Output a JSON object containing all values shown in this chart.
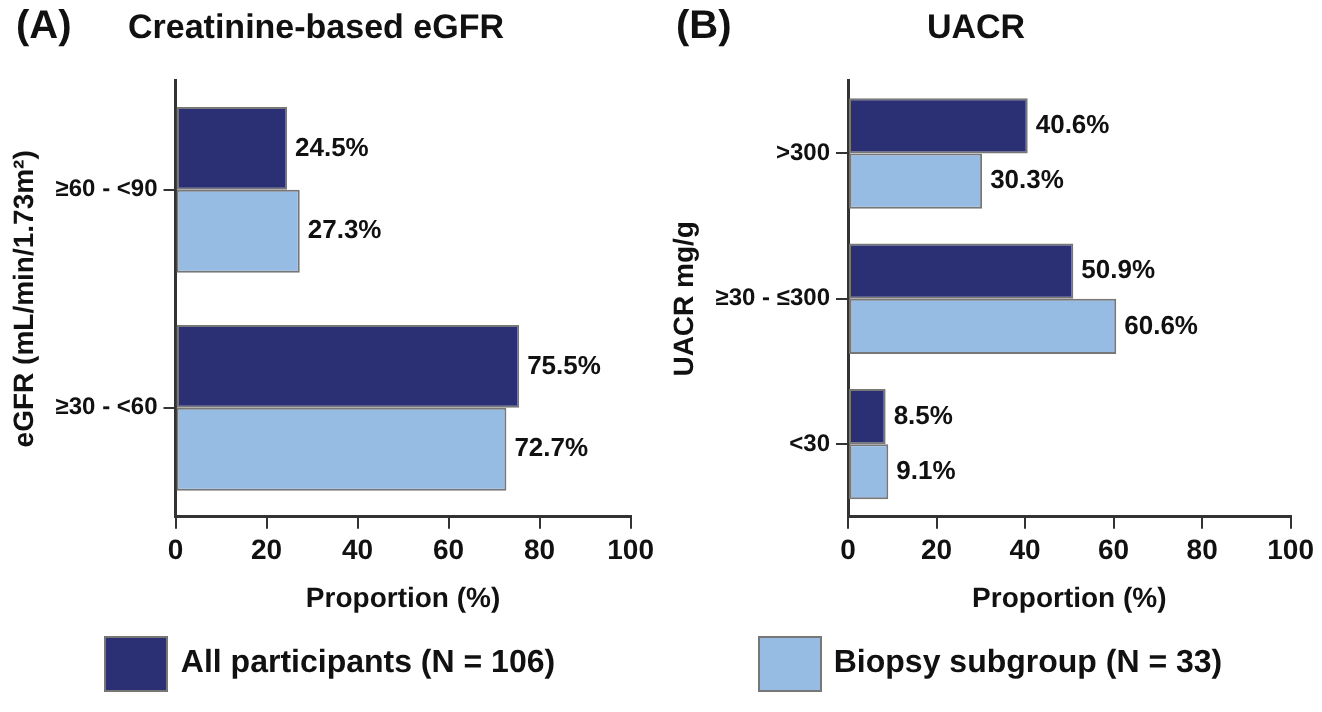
{
  "chart_data": [
    {
      "type": "bar",
      "orientation": "horizontal",
      "title": "Creatinine-based eGFR",
      "annotations": [
        "(A)"
      ],
      "xlabel": "Proportion (%)",
      "ylabel": "eGFR (mL/min/1.73m²)",
      "categories": [
        "≥60 - <90",
        "≥30 - <60"
      ],
      "xlim": [
        0,
        100
      ],
      "xticks": [
        0,
        20,
        40,
        60,
        80,
        100
      ],
      "grid": false,
      "legend": "bottom",
      "series": [
        {
          "name": "All participants (N = 106)",
          "color": "#2b2f73",
          "values": [
            24.5,
            75.5
          ],
          "value_labels": [
            "24.5%",
            "75.5%"
          ]
        },
        {
          "color": "#97bce4",
          "values": [
            27.3,
            72.7
          ],
          "value_labels": [
            "27.3%",
            "72.7%"
          ]
        }
      ]
    },
    {
      "type": "bar",
      "orientation": "horizontal",
      "title": "UACR",
      "annotations": [
        "(B)"
      ],
      "xlabel": "Proportion (%)",
      "ylabel": "UACR mg/g",
      "categories": [
        ">300",
        "≥30 - ≤300",
        "<30"
      ],
      "xlim": [
        0,
        100
      ],
      "xticks": [
        0,
        20,
        40,
        60,
        80,
        100
      ],
      "grid": false,
      "legend": "bottom",
      "series": [
        {
          "color": "#2b2f73",
          "values": [
            40.6,
            50.9,
            8.5
          ],
          "value_labels": [
            "40.6%",
            "50.9%",
            "8.5%"
          ]
        },
        {
          "name": "Biopsy subgroup (N = 33)",
          "color": "#97bce4",
          "values": [
            30.3,
            60.6,
            9.1
          ],
          "value_labels": [
            "30.3%",
            "60.6%",
            "9.1%"
          ]
        }
      ]
    }
  ]
}
